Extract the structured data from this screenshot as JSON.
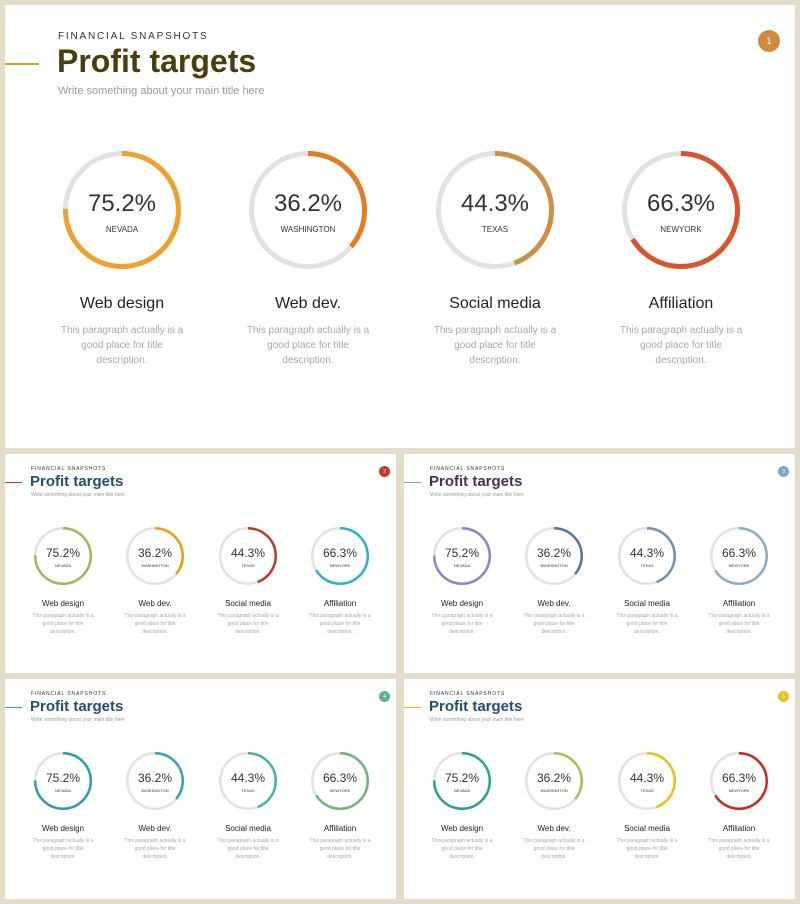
{
  "main": {
    "kicker": "FINANCIAL SNAPSHOTS",
    "title": "Profit targets",
    "subtitle": "Write something about your main title here",
    "page_number": "1",
    "title_color": "#4a3d0e",
    "accent_color": "#e3962e",
    "badge_color": "#d18a3f",
    "items": [
      {
        "percent": "75.2%",
        "value": 75.2,
        "city": "NEVADA",
        "title": "Web design",
        "description": "This paragraph actually is a good place for title description.",
        "color": "#f0a02c"
      },
      {
        "percent": "36.2%",
        "value": 36.2,
        "city": "WASHINGTON",
        "title": "Web dev.",
        "description": "This paragraph actually is a good place for title description.",
        "color": "#e57c22"
      },
      {
        "percent": "44.3%",
        "value": 44.3,
        "city": "TEXAS",
        "title": "Social media",
        "description": "This paragraph actually is a good place for title description.",
        "color": "#cf8f44"
      },
      {
        "percent": "66.3%",
        "value": 66.3,
        "city": "NEWYORK",
        "title": "Affiliation",
        "description": "This paragraph actually is a good place for title description.",
        "color": "#d9532b"
      }
    ]
  },
  "variants": [
    {
      "kicker": "FINANCIAL SNAPSHOTS",
      "title": "Profit targets",
      "subtitle": "Write something about your main title here",
      "page_number": "2",
      "title_color": "#1f4e79",
      "accent_color": "#c0392b",
      "badge_color": "#c0392b",
      "items": [
        {
          "percent": "75.2%",
          "value": 75.2,
          "city": "NEVADA",
          "title": "Web design",
          "description": "This paragraph actually is a good place for title description.",
          "color": "#9bbb59"
        },
        {
          "percent": "36.2%",
          "value": 36.2,
          "city": "WASHINGTON",
          "title": "Web dev.",
          "description": "This paragraph actually is a good place for title description.",
          "color": "#f39c12"
        },
        {
          "percent": "44.3%",
          "value": 44.3,
          "city": "TEXAS",
          "title": "Social media",
          "description": "This paragraph actually is a good place for title description.",
          "color": "#c0392b"
        },
        {
          "percent": "66.3%",
          "value": 66.3,
          "city": "NEWYORK",
          "title": "Affiliation",
          "description": "This paragraph actually is a good place for title description.",
          "color": "#2bb0d9"
        }
      ]
    },
    {
      "kicker": "FINANCIAL SNAPSHOTS",
      "title": "Profit targets",
      "subtitle": "Write something about your main title here",
      "page_number": "3",
      "title_color": "#4a2c5e",
      "accent_color": "#7f9fbf",
      "badge_color": "#7fa6c4",
      "items": [
        {
          "percent": "75.2%",
          "value": 75.2,
          "city": "NEVADA",
          "title": "Web design",
          "description": "This paragraph actually is a good place for title description.",
          "color": "#8e86c8"
        },
        {
          "percent": "36.2%",
          "value": 36.2,
          "city": "WASHINGTON",
          "title": "Web dev.",
          "description": "This paragraph actually is a good place for title description.",
          "color": "#5a74a0"
        },
        {
          "percent": "44.3%",
          "value": 44.3,
          "city": "TEXAS",
          "title": "Social media",
          "description": "This paragraph actually is a good place for title description.",
          "color": "#6f92b6"
        },
        {
          "percent": "66.3%",
          "value": 66.3,
          "city": "NEWYORK",
          "title": "Affiliation",
          "description": "This paragraph actually is a good place for title description.",
          "color": "#88aec0"
        }
      ]
    },
    {
      "kicker": "FINANCIAL SNAPSHOTS",
      "title": "Profit targets",
      "subtitle": "Write something about your main title here",
      "page_number": "4",
      "title_color": "#1f4e79",
      "accent_color": "#2e9cb0",
      "badge_color": "#5bb593",
      "items": [
        {
          "percent": "75.2%",
          "value": 75.2,
          "city": "NEVADA",
          "title": "Web design",
          "description": "This paragraph actually is a good place for title description.",
          "color": "#2e9cb8"
        },
        {
          "percent": "36.2%",
          "value": 36.2,
          "city": "WASHINGTON",
          "title": "Web dev.",
          "description": "This paragraph actually is a good place for title description.",
          "color": "#33a6b0"
        },
        {
          "percent": "44.3%",
          "value": 44.3,
          "city": "TEXAS",
          "title": "Social media",
          "description": "This paragraph actually is a good place for title description.",
          "color": "#47b59c"
        },
        {
          "percent": "66.3%",
          "value": 66.3,
          "city": "NEWYORK",
          "title": "Affiliation",
          "description": "This paragraph actually is a good place for title description.",
          "color": "#6fb67a"
        }
      ]
    },
    {
      "kicker": "FINANCIAL SNAPSHOTS",
      "title": "Profit targets",
      "subtitle": "Write something about your main title here",
      "page_number": "5",
      "title_color": "#1f4e79",
      "accent_color": "#e6b800",
      "badge_color": "#ecc21a",
      "items": [
        {
          "percent": "75.2%",
          "value": 75.2,
          "city": "NEVADA",
          "title": "Web design",
          "description": "This paragraph actually is a good place for title description.",
          "color": "#2aa58a"
        },
        {
          "percent": "36.2%",
          "value": 36.2,
          "city": "WASHINGTON",
          "title": "Web dev.",
          "description": "This paragraph actually is a good place for title description.",
          "color": "#a4c255"
        },
        {
          "percent": "44.3%",
          "value": 44.3,
          "city": "TEXAS",
          "title": "Social media",
          "description": "This paragraph actually is a good place for title description.",
          "color": "#e8c20f"
        },
        {
          "percent": "66.3%",
          "value": 66.3,
          "city": "NEWYORK",
          "title": "Affiliation",
          "description": "This paragraph actually is a good place for title description.",
          "color": "#d0261f"
        }
      ]
    }
  ]
}
